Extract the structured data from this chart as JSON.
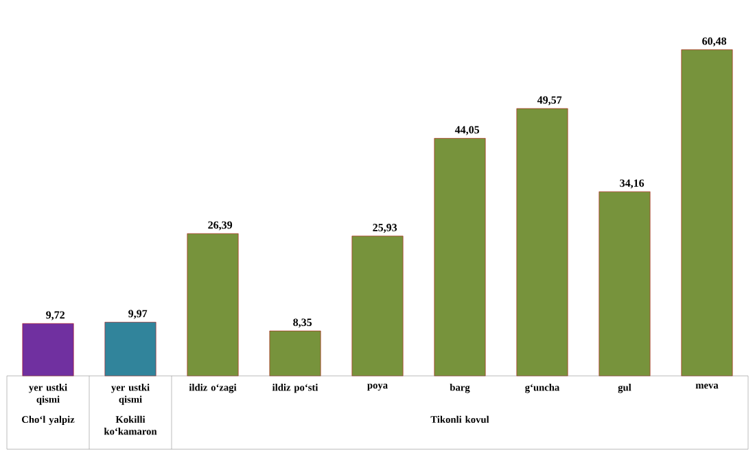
{
  "chart_data": {
    "type": "bar",
    "categories": [
      "yer ustki qismi",
      "yer ustki qismi",
      "ildiz o‘zagi",
      "ildiz po‘sti",
      "poya",
      "barg",
      "g‘uncha",
      "gul",
      "meva"
    ],
    "values": [
      9.72,
      9.97,
      26.39,
      8.35,
      25.93,
      44.05,
      49.57,
      34.16,
      60.48
    ],
    "value_labels": [
      "9,72",
      "9,97",
      "26,39",
      "8,35",
      "25,93",
      "44,05",
      "49,57",
      "34,16",
      "60,48"
    ],
    "colors": [
      "#7030a0",
      "#31849b",
      "#77933c",
      "#77933c",
      "#77933c",
      "#77933c",
      "#77933c",
      "#77933c",
      "#77933c"
    ],
    "annotations": [
      "Cho‘l yalpiz",
      "Kokilli ko‘kamaron",
      "Tikonli kovul"
    ]
  }
}
